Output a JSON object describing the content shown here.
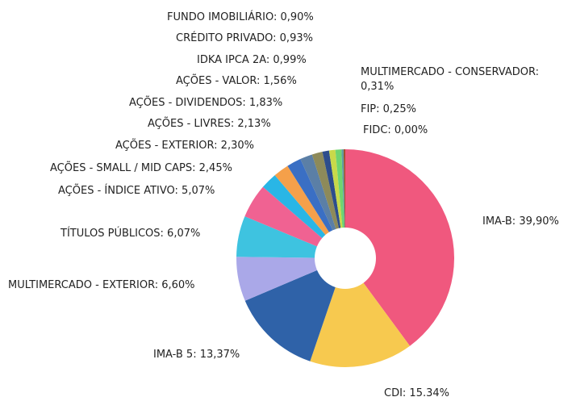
{
  "chart_data": {
    "type": "donut",
    "value_labels": [
      "IMA-B: 39,90%",
      "CDI: 15.34%",
      "IMA-B 5: 13,37%",
      "MULTIMERCADO - EXTERIOR: 6,60%",
      "TÍTULOS PÚBLICOS: 6,07%",
      "AÇÕES - ÍNDICE ATIVO: 5,07%",
      "AÇÕES - SMALL / MID CAPS: 2,45%",
      "AÇÕES - EXTERIOR: 2,30%",
      "AÇÕES - LIVRES: 2,13%",
      "AÇÕES - DIVIDENDOS: 1,83%",
      "AÇÕES - VALOR: 1,56%",
      "IDKA IPCA 2A: 0,99%",
      "CRÉDITO PRIVADO: 0,93%",
      "FUNDO IMOBILIÁRIO: 0,90%",
      "MULTIMERCADO - CONSERVADOR: 0,31%",
      "FIP: 0,25%",
      "FIDC: 0,00%"
    ],
    "values": [
      39.9,
      15.34,
      13.37,
      6.6,
      6.07,
      5.07,
      2.45,
      2.3,
      2.13,
      1.83,
      1.56,
      0.99,
      0.93,
      0.9,
      0.31,
      0.25,
      0.0
    ],
    "colors": [
      "#f0587e",
      "#f7c94f",
      "#2f62a8",
      "#aaa8e8",
      "#3ec3e0",
      "#f06292",
      "#29b6e6",
      "#f5a04a",
      "#3a6fc4",
      "#5b7fa6",
      "#8d8a5a",
      "#2d4d8c",
      "#c8d94a",
      "#6fd46f",
      "#5f9ea0",
      "#a0522d",
      "#888888"
    ]
  }
}
